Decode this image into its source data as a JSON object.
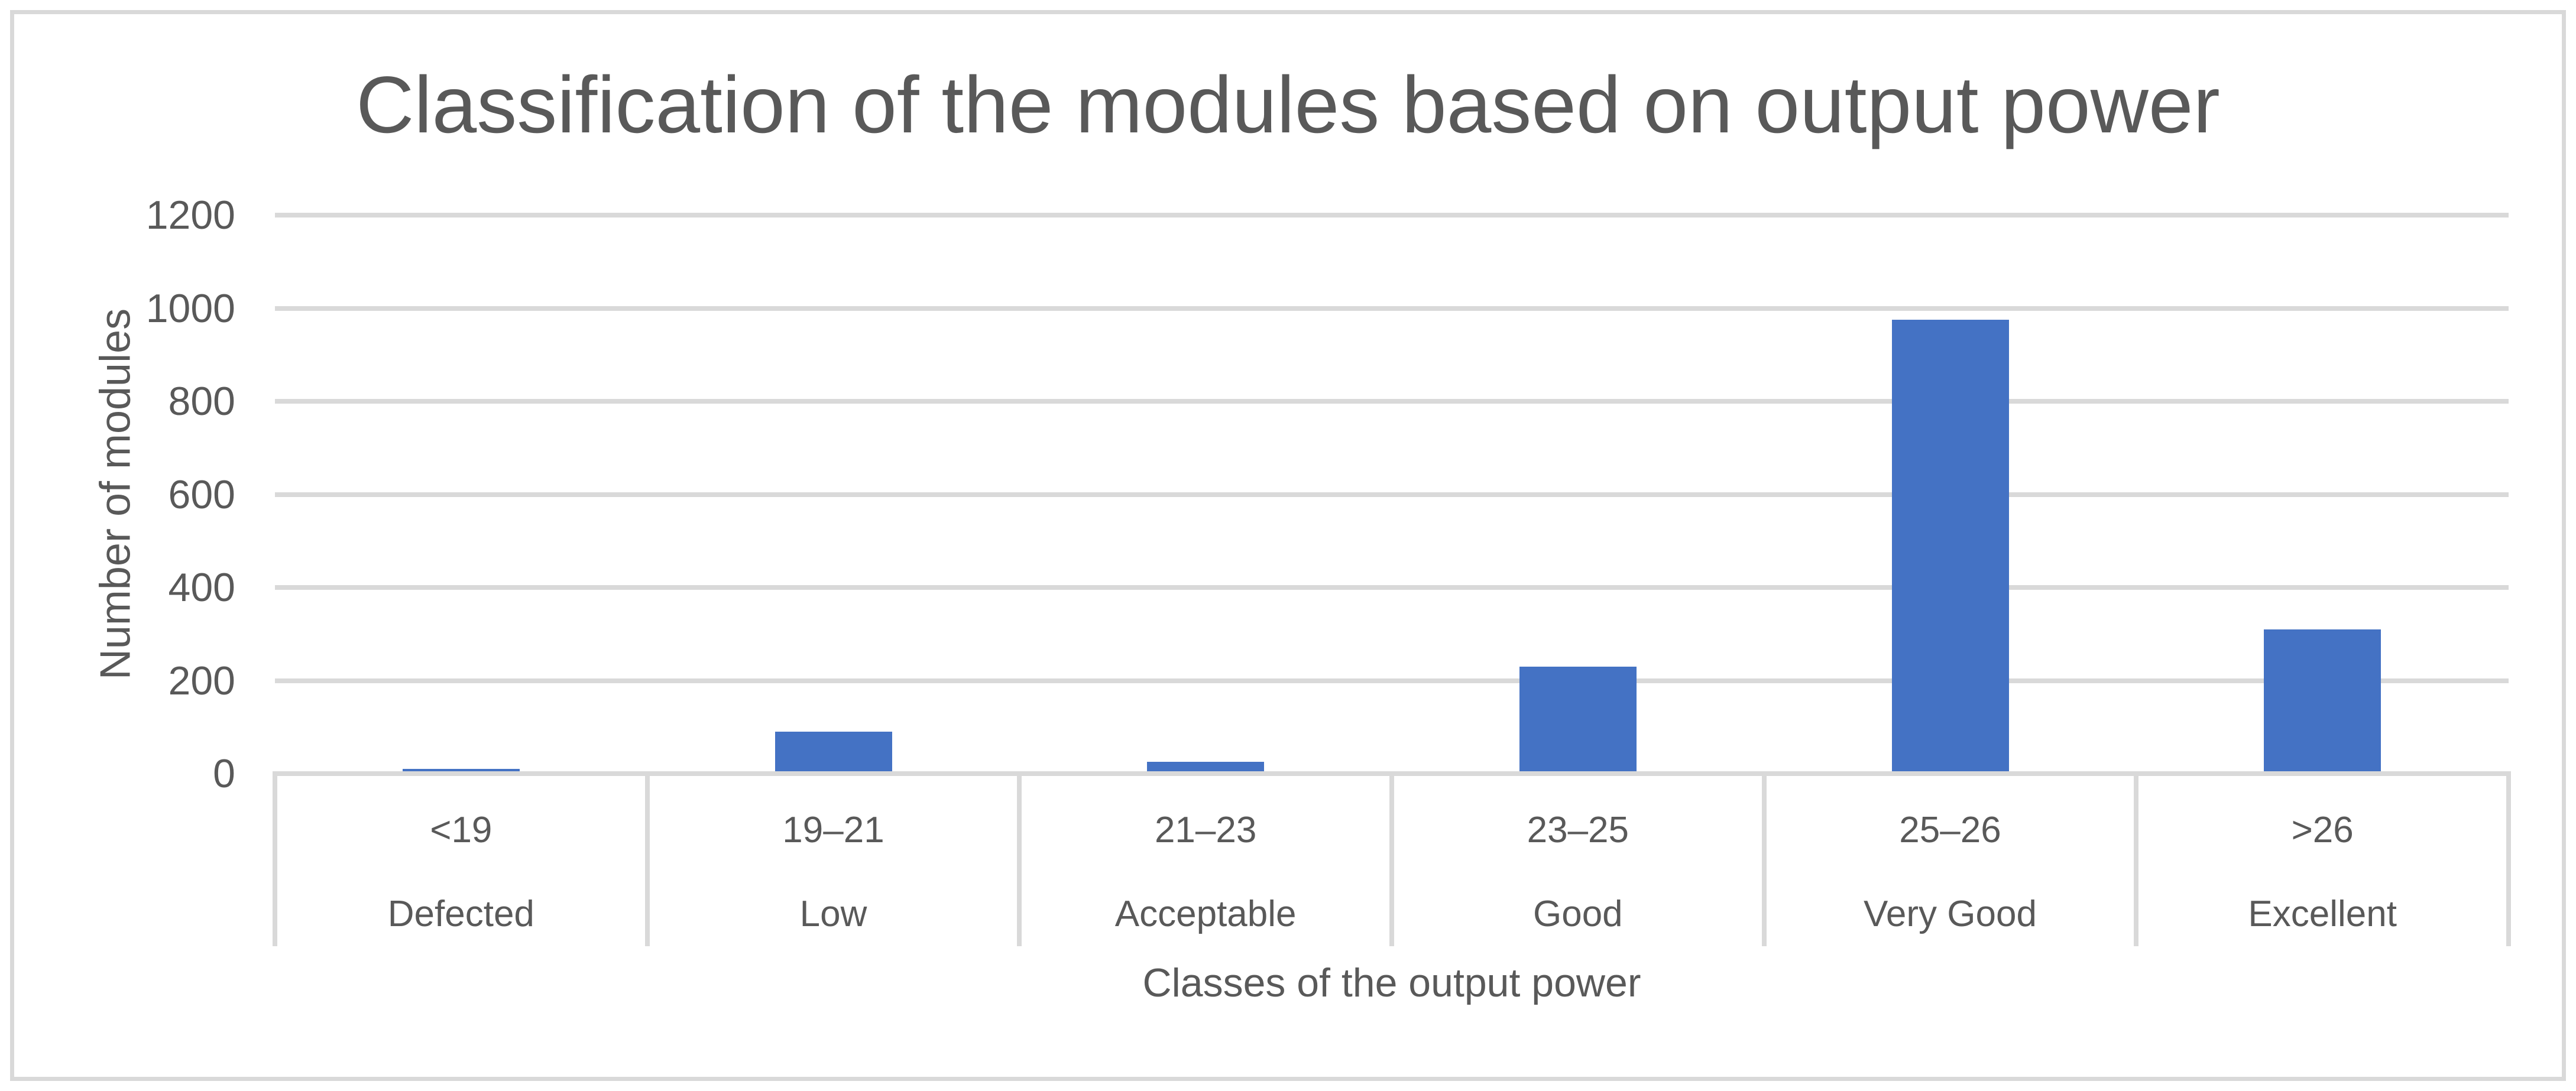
{
  "chart": {
    "title": "Classification of the modules based on output power",
    "y_axis": {
      "title": "Number of modules",
      "ticks": [
        0,
        200,
        400,
        600,
        800,
        1000,
        1200
      ],
      "max": 1200
    },
    "x_axis": {
      "title": "Classes of the output power"
    },
    "categories": [
      {
        "range": "<19",
        "class_label": "Defected",
        "value": 10
      },
      {
        "range": "19–21",
        "class_label": "Low",
        "value": 90
      },
      {
        "range": "21–23",
        "class_label": "Acceptable",
        "value": 25
      },
      {
        "range": "23–25",
        "class_label": "Good",
        "value": 230
      },
      {
        "range": "25–26",
        "class_label": "Very Good",
        "value": 975
      },
      {
        "range": ">26",
        "class_label": "Excellent",
        "value": 310
      }
    ],
    "colors": {
      "bar": "#4472C4",
      "grid": "#D9D9D9",
      "text": "#595959"
    }
  },
  "chart_data": {
    "type": "bar",
    "categories": [
      "<19",
      "19–21",
      "21–23",
      "23–25",
      "25–26",
      ">26"
    ],
    "category_class_labels": [
      "Defected",
      "Low",
      "Acceptable",
      "Good",
      "Very Good",
      "Excellent"
    ],
    "values": [
      10,
      90,
      25,
      230,
      975,
      310
    ],
    "title": "Classification of the modules based on output power",
    "xlabel": "Classes of the output power",
    "ylabel": "Number of modules",
    "ylim": [
      0,
      1200
    ],
    "ytick_step": 200,
    "grid": true,
    "legend": false,
    "bar_color": "#4472C4"
  }
}
